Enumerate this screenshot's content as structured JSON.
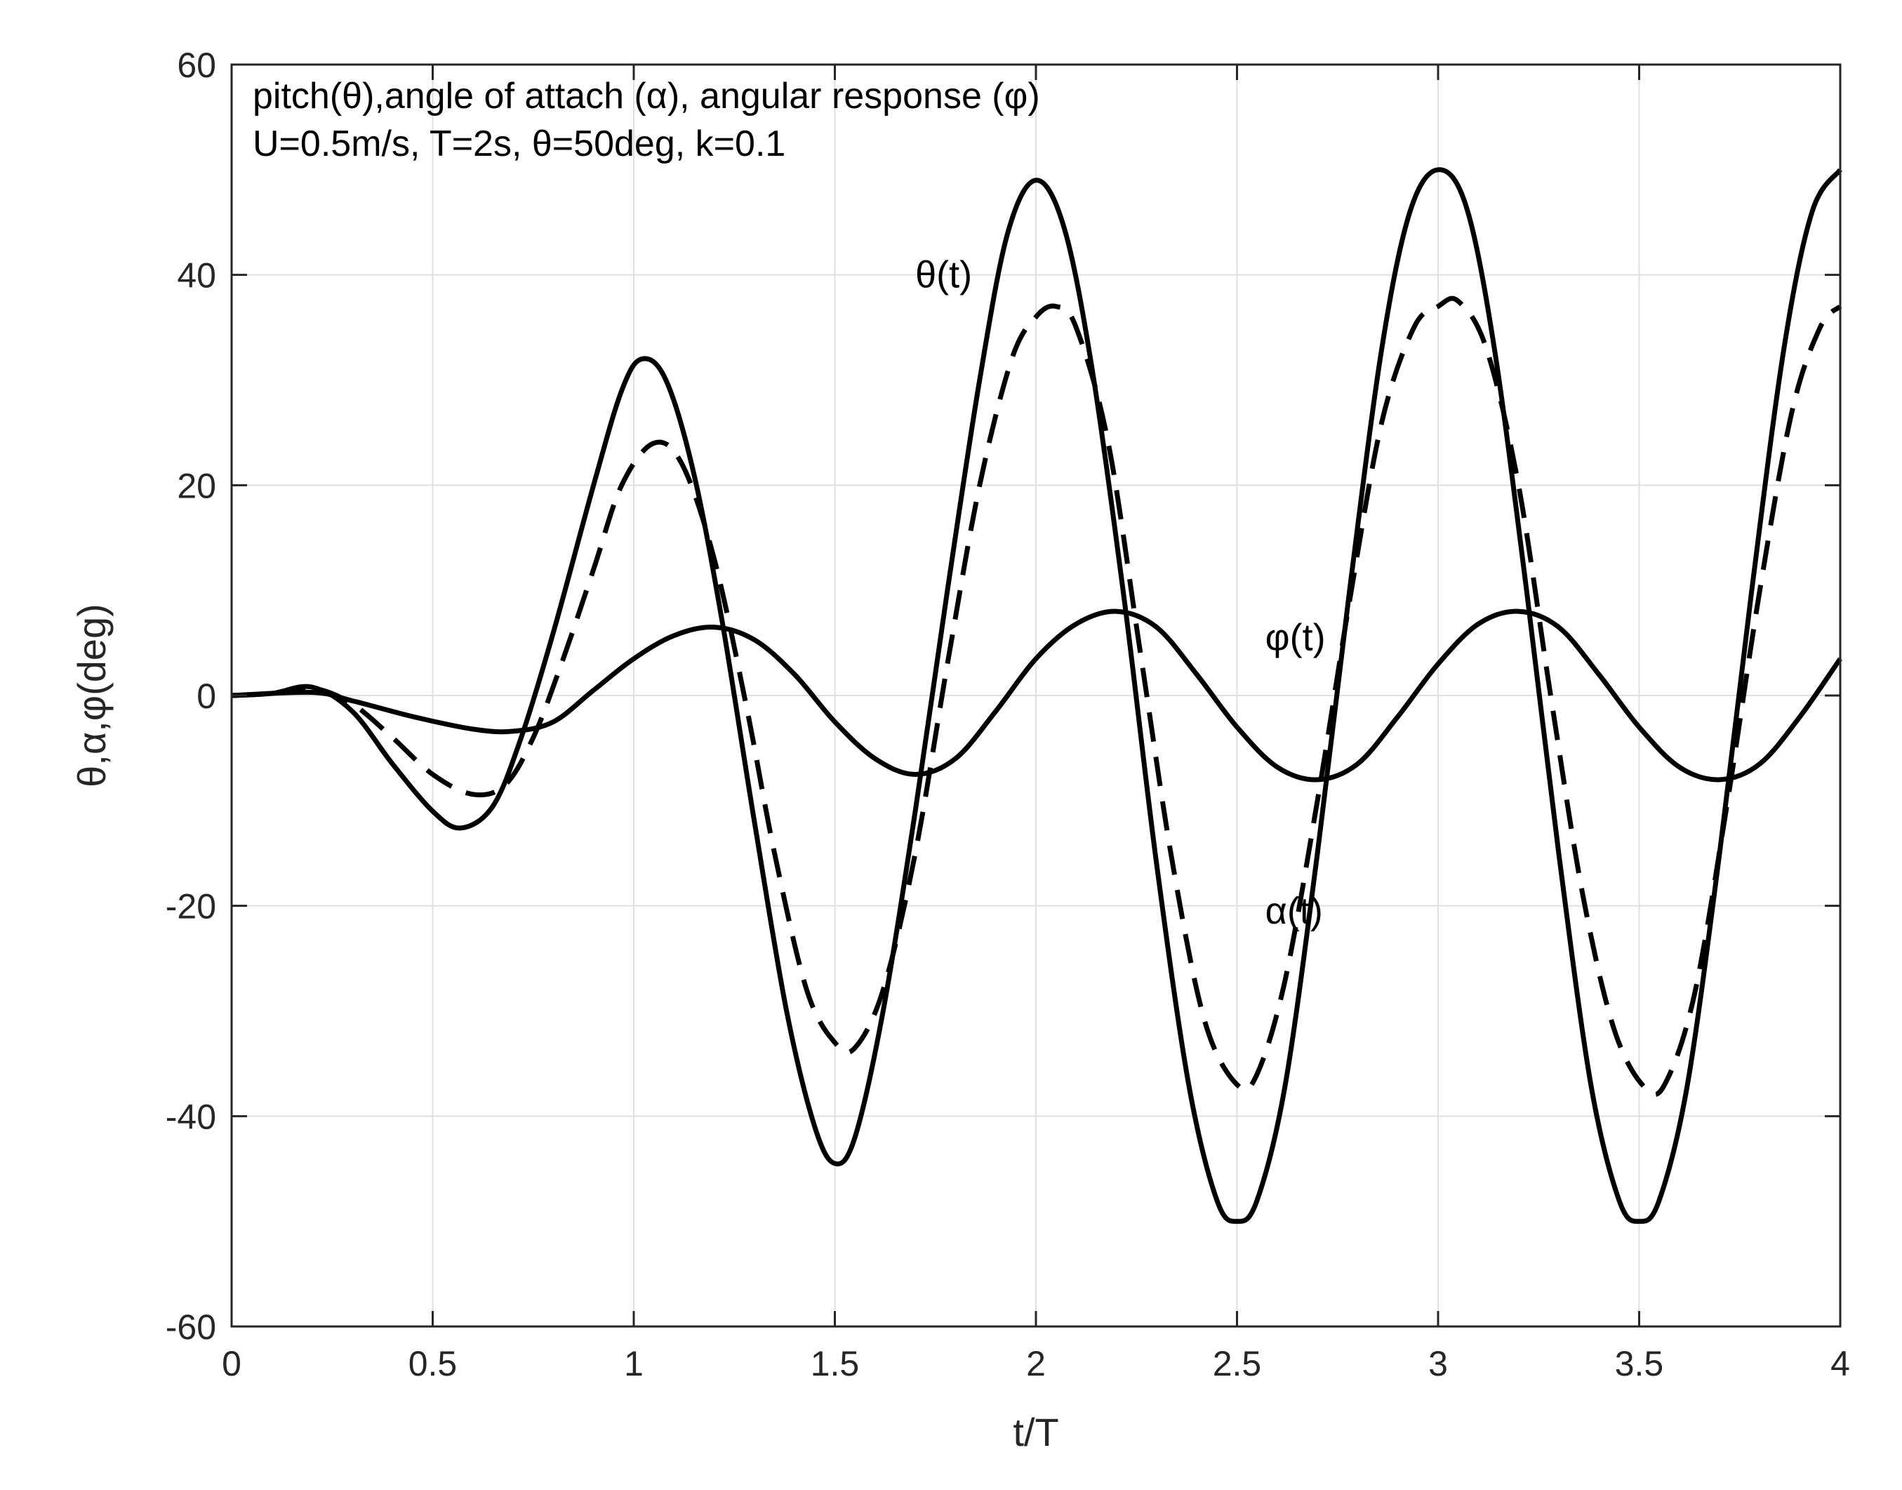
{
  "chart_data": {
    "type": "line",
    "title": "",
    "xlabel": "t/T",
    "ylabel": "θ,α,φ(deg)",
    "xlim": [
      0,
      4
    ],
    "ylim": [
      -60,
      60
    ],
    "grid": true,
    "xticks": [
      0,
      0.5,
      1,
      1.5,
      2,
      2.5,
      3,
      3.5,
      4
    ],
    "xtick_labels": [
      "0",
      "0.5",
      "1",
      "1.5",
      "2",
      "2.5",
      "3",
      "3.5",
      "4"
    ],
    "yticks": [
      -60,
      -40,
      -20,
      0,
      20,
      40,
      60
    ],
    "ytick_labels": [
      "-60",
      "-40",
      "-20",
      "0",
      "20",
      "40",
      "60"
    ],
    "annotations": [
      "pitch(θ),angle of attach (α), angular response (φ)",
      "U=0.5m/s, T=2s, θ=50deg, k=0.1"
    ],
    "series": [
      {
        "name": "θ(t)",
        "style": "solid",
        "points": [
          [
            0,
            0
          ],
          [
            0.1,
            0.2
          ],
          [
            0.2,
            0.8
          ],
          [
            0.3,
            -1.5
          ],
          [
            0.4,
            -6.5
          ],
          [
            0.5,
            -11.0
          ],
          [
            0.57,
            -12.6
          ],
          [
            0.65,
            -10.5
          ],
          [
            0.72,
            -4.0
          ],
          [
            0.8,
            6.0
          ],
          [
            0.9,
            20.0
          ],
          [
            0.97,
            29.0
          ],
          [
            1.02,
            32.0
          ],
          [
            1.08,
            30.0
          ],
          [
            1.15,
            21.0
          ],
          [
            1.22,
            7.0
          ],
          [
            1.3,
            -12.0
          ],
          [
            1.38,
            -30.0
          ],
          [
            1.45,
            -41.0
          ],
          [
            1.5,
            -44.5
          ],
          [
            1.55,
            -42.0
          ],
          [
            1.62,
            -30.0
          ],
          [
            1.7,
            -11.0
          ],
          [
            1.78,
            10.0
          ],
          [
            1.86,
            30.0
          ],
          [
            1.93,
            44.0
          ],
          [
            2.0,
            49.0
          ],
          [
            2.07,
            44.5
          ],
          [
            2.14,
            31.0
          ],
          [
            2.22,
            9.0
          ],
          [
            2.3,
            -16.0
          ],
          [
            2.38,
            -37.0
          ],
          [
            2.45,
            -48.0
          ],
          [
            2.5,
            -50.0
          ],
          [
            2.55,
            -48.0
          ],
          [
            2.62,
            -37.0
          ],
          [
            2.7,
            -15.0
          ],
          [
            2.78,
            10.0
          ],
          [
            2.86,
            33.0
          ],
          [
            2.93,
            46.0
          ],
          [
            3.0,
            50.0
          ],
          [
            3.07,
            46.5
          ],
          [
            3.14,
            33.0
          ],
          [
            3.22,
            10.0
          ],
          [
            3.3,
            -15.0
          ],
          [
            3.38,
            -37.0
          ],
          [
            3.45,
            -48.0
          ],
          [
            3.5,
            -50.0
          ],
          [
            3.55,
            -48.0
          ],
          [
            3.62,
            -37.0
          ],
          [
            3.7,
            -15.0
          ],
          [
            3.78,
            10.0
          ],
          [
            3.86,
            33.0
          ],
          [
            3.93,
            46.0
          ],
          [
            4.0,
            50.0
          ]
        ]
      },
      {
        "name": "α(t)",
        "style": "dashed",
        "points": [
          [
            0,
            0
          ],
          [
            0.1,
            0.2
          ],
          [
            0.2,
            0.7
          ],
          [
            0.3,
            -0.8
          ],
          [
            0.4,
            -4.0
          ],
          [
            0.5,
            -7.5
          ],
          [
            0.6,
            -9.4
          ],
          [
            0.68,
            -8.5
          ],
          [
            0.75,
            -4.0
          ],
          [
            0.82,
            3.0
          ],
          [
            0.9,
            12.0
          ],
          [
            0.97,
            20.0
          ],
          [
            1.05,
            24.0
          ],
          [
            1.12,
            22.0
          ],
          [
            1.2,
            13.0
          ],
          [
            1.28,
            -1.0
          ],
          [
            1.35,
            -15.0
          ],
          [
            1.43,
            -28.0
          ],
          [
            1.5,
            -33.0
          ],
          [
            1.55,
            -33.5
          ],
          [
            1.62,
            -28.0
          ],
          [
            1.7,
            -15.0
          ],
          [
            1.78,
            3.0
          ],
          [
            1.86,
            20.0
          ],
          [
            1.94,
            32.0
          ],
          [
            2.0,
            36.0
          ],
          [
            2.05,
            37.0
          ],
          [
            2.1,
            35.0
          ],
          [
            2.18,
            24.0
          ],
          [
            2.26,
            4.0
          ],
          [
            2.34,
            -16.0
          ],
          [
            2.42,
            -31.0
          ],
          [
            2.5,
            -37.0
          ],
          [
            2.55,
            -36.0
          ],
          [
            2.62,
            -27.0
          ],
          [
            2.7,
            -10.0
          ],
          [
            2.78,
            9.0
          ],
          [
            2.86,
            26.0
          ],
          [
            2.94,
            35.0
          ],
          [
            3.0,
            37.0
          ],
          [
            3.05,
            37.5
          ],
          [
            3.12,
            33.0
          ],
          [
            3.2,
            20.0
          ],
          [
            3.28,
            0.0
          ],
          [
            3.36,
            -19.0
          ],
          [
            3.44,
            -32.0
          ],
          [
            3.52,
            -37.5
          ],
          [
            3.57,
            -36.5
          ],
          [
            3.64,
            -28.0
          ],
          [
            3.72,
            -10.0
          ],
          [
            3.8,
            10.0
          ],
          [
            3.88,
            27.0
          ],
          [
            3.95,
            35.0
          ],
          [
            4.0,
            37.0
          ]
        ]
      },
      {
        "name": "φ(t)",
        "style": "solid",
        "points": [
          [
            0,
            0
          ],
          [
            0.2,
            0.3
          ],
          [
            0.3,
            -0.5
          ],
          [
            0.45,
            -2.0
          ],
          [
            0.6,
            -3.2
          ],
          [
            0.7,
            -3.4
          ],
          [
            0.8,
            -2.5
          ],
          [
            0.9,
            0.5
          ],
          [
            1.0,
            3.5
          ],
          [
            1.1,
            5.7
          ],
          [
            1.2,
            6.5
          ],
          [
            1.3,
            5.3
          ],
          [
            1.4,
            2.0
          ],
          [
            1.5,
            -2.5
          ],
          [
            1.6,
            -6.0
          ],
          [
            1.7,
            -7.5
          ],
          [
            1.8,
            -6.0
          ],
          [
            1.9,
            -1.5
          ],
          [
            2.0,
            3.5
          ],
          [
            2.1,
            6.8
          ],
          [
            2.2,
            8.0
          ],
          [
            2.3,
            6.5
          ],
          [
            2.4,
            2.0
          ],
          [
            2.5,
            -3.0
          ],
          [
            2.6,
            -6.8
          ],
          [
            2.7,
            -8.0
          ],
          [
            2.8,
            -6.5
          ],
          [
            2.9,
            -2.0
          ],
          [
            3.0,
            3.0
          ],
          [
            3.1,
            6.8
          ],
          [
            3.2,
            8.0
          ],
          [
            3.3,
            6.5
          ],
          [
            3.4,
            2.0
          ],
          [
            3.5,
            -3.0
          ],
          [
            3.6,
            -6.8
          ],
          [
            3.7,
            -8.0
          ],
          [
            3.8,
            -6.5
          ],
          [
            3.9,
            -2.0
          ],
          [
            4.0,
            3.5
          ]
        ]
      }
    ],
    "curve_labels": [
      {
        "text": "θ(t)",
        "x": 1.7,
        "y": 40
      },
      {
        "text": "φ(t)",
        "x": 2.57,
        "y": 5.5
      },
      {
        "text": "α(t)",
        "x": 2.57,
        "y": -20.5
      }
    ]
  }
}
